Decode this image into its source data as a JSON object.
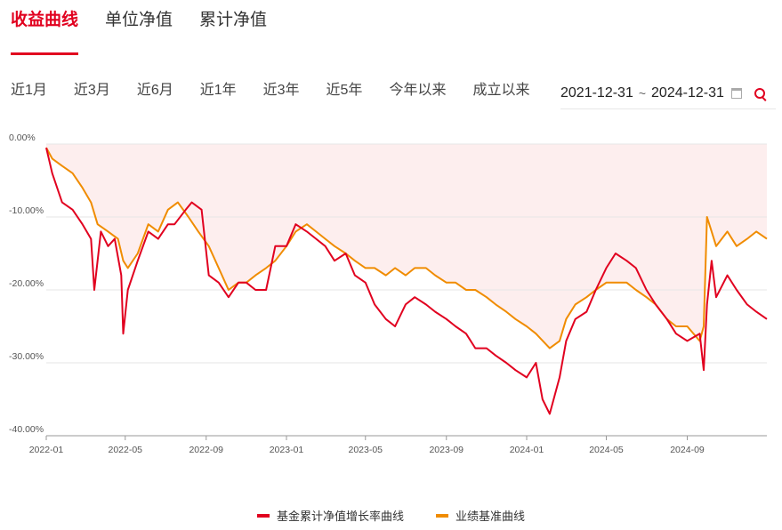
{
  "tabs": [
    {
      "label": "收益曲线"
    },
    {
      "label": "单位净值"
    },
    {
      "label": "累计净值"
    }
  ],
  "ranges": [
    {
      "label": "近1月"
    },
    {
      "label": "近3月"
    },
    {
      "label": "近6月"
    },
    {
      "label": "近1年"
    },
    {
      "label": "近3年"
    },
    {
      "label": "近5年"
    },
    {
      "label": "今年以来"
    },
    {
      "label": "成立以来"
    }
  ],
  "date_range": {
    "start": "2021-12-31",
    "sep": "~",
    "end": "2024-12-31"
  },
  "colors": {
    "accent": "#e1001f",
    "fund": "#e1001f",
    "benchmark": "#f08c00",
    "fill": "#fdeeee",
    "grid": "#e6e6e6"
  },
  "icons": {
    "calendar": "calendar-icon",
    "search": "search-icon"
  },
  "legend": [
    {
      "label": "基金累计净值增长率曲线",
      "color": "#e1001f"
    },
    {
      "label": "业绩基准曲线",
      "color": "#f08c00"
    }
  ],
  "chart_data": {
    "type": "line",
    "y_unit": "%",
    "ylim": [
      -40,
      0
    ],
    "y_ticks": [
      0,
      -10,
      -20,
      -30,
      -40
    ],
    "y_tick_labels": [
      "0.00%",
      "-10.00%",
      "-20.00%",
      "-30.00%",
      "-40.00%"
    ],
    "x_range": [
      "2022-01-01",
      "2024-12-31"
    ],
    "x_tick_labels": [
      "2022-01",
      "2022-05",
      "2022-09",
      "2023-01",
      "2023-05",
      "2023-09",
      "2024-01",
      "2024-05",
      "2024-09"
    ],
    "x_tick_dates": [
      "2022-01-01",
      "2022-05-01",
      "2022-09-01",
      "2023-01-01",
      "2023-05-01",
      "2023-09-01",
      "2024-01-01",
      "2024-05-01",
      "2024-09-01"
    ],
    "grid": true,
    "legend_position": "bottom",
    "series": [
      {
        "name": "基金累计净值增长率曲线",
        "x": [
          "2022-01-01",
          "2022-01-10",
          "2022-01-25",
          "2022-02-10",
          "2022-02-25",
          "2022-03-10",
          "2022-03-15",
          "2022-03-25",
          "2022-04-05",
          "2022-04-15",
          "2022-04-25",
          "2022-04-28",
          "2022-05-05",
          "2022-05-20",
          "2022-06-05",
          "2022-06-20",
          "2022-07-05",
          "2022-07-15",
          "2022-08-01",
          "2022-08-10",
          "2022-08-25",
          "2022-09-05",
          "2022-09-20",
          "2022-10-05",
          "2022-10-20",
          "2022-11-01",
          "2022-11-15",
          "2022-12-01",
          "2022-12-15",
          "2023-01-01",
          "2023-01-15",
          "2023-02-01",
          "2023-02-15",
          "2023-03-01",
          "2023-03-15",
          "2023-04-01",
          "2023-04-15",
          "2023-05-01",
          "2023-05-15",
          "2023-06-01",
          "2023-06-15",
          "2023-07-01",
          "2023-07-15",
          "2023-08-01",
          "2023-08-15",
          "2023-09-01",
          "2023-09-15",
          "2023-10-01",
          "2023-10-15",
          "2023-11-01",
          "2023-11-15",
          "2023-12-01",
          "2023-12-15",
          "2024-01-01",
          "2024-01-15",
          "2024-01-25",
          "2024-02-05",
          "2024-02-20",
          "2024-03-01",
          "2024-03-15",
          "2024-04-01",
          "2024-04-15",
          "2024-05-01",
          "2024-05-15",
          "2024-06-01",
          "2024-06-15",
          "2024-07-01",
          "2024-07-15",
          "2024-08-01",
          "2024-08-15",
          "2024-09-01",
          "2024-09-20",
          "2024-09-26",
          "2024-10-01",
          "2024-10-08",
          "2024-10-15",
          "2024-11-01",
          "2024-11-15",
          "2024-12-01",
          "2024-12-15",
          "2024-12-31"
        ],
        "values": [
          -0.5,
          -4,
          -8,
          -9,
          -11,
          -13,
          -20,
          -12,
          -14,
          -13,
          -18,
          -26,
          -20,
          -16,
          -12,
          -13,
          -11,
          -11,
          -9,
          -8,
          -9,
          -18,
          -19,
          -21,
          -19,
          -19,
          -20,
          -20,
          -14,
          -14,
          -11,
          -12,
          -13,
          -14,
          -16,
          -15,
          -18,
          -19,
          -22,
          -24,
          -25,
          -22,
          -21,
          -22,
          -23,
          -24,
          -25,
          -26,
          -28,
          -28,
          -29,
          -30,
          -31,
          -32,
          -30,
          -35,
          -37,
          -32,
          -27,
          -24,
          -23,
          -20,
          -17,
          -15,
          -16,
          -17,
          -20,
          -22,
          -24,
          -26,
          -27,
          -26,
          -31,
          -22,
          -16,
          -21,
          -18,
          -20,
          -22,
          -23,
          -24
        ]
      },
      {
        "name": "业绩基准曲线",
        "x": [
          "2022-01-01",
          "2022-01-10",
          "2022-01-25",
          "2022-02-10",
          "2022-02-25",
          "2022-03-10",
          "2022-03-20",
          "2022-04-05",
          "2022-04-20",
          "2022-04-28",
          "2022-05-05",
          "2022-05-20",
          "2022-06-05",
          "2022-06-20",
          "2022-07-05",
          "2022-07-20",
          "2022-08-05",
          "2022-08-20",
          "2022-09-05",
          "2022-09-20",
          "2022-10-05",
          "2022-10-20",
          "2022-11-01",
          "2022-11-15",
          "2022-12-01",
          "2022-12-15",
          "2023-01-01",
          "2023-01-15",
          "2023-02-01",
          "2023-02-15",
          "2023-03-01",
          "2023-03-15",
          "2023-04-01",
          "2023-04-15",
          "2023-05-01",
          "2023-05-15",
          "2023-06-01",
          "2023-06-15",
          "2023-07-01",
          "2023-07-15",
          "2023-08-01",
          "2023-08-15",
          "2023-09-01",
          "2023-09-15",
          "2023-10-01",
          "2023-10-15",
          "2023-11-01",
          "2023-11-15",
          "2023-12-01",
          "2023-12-15",
          "2024-01-01",
          "2024-01-15",
          "2024-02-05",
          "2024-02-20",
          "2024-03-01",
          "2024-03-15",
          "2024-04-01",
          "2024-04-15",
          "2024-05-01",
          "2024-05-15",
          "2024-06-01",
          "2024-06-15",
          "2024-07-01",
          "2024-07-15",
          "2024-08-01",
          "2024-08-15",
          "2024-09-01",
          "2024-09-20",
          "2024-09-26",
          "2024-10-01",
          "2024-10-08",
          "2024-10-15",
          "2024-11-01",
          "2024-11-15",
          "2024-12-01",
          "2024-12-15",
          "2024-12-31"
        ],
        "values": [
          -0.5,
          -2,
          -3,
          -4,
          -6,
          -8,
          -11,
          -12,
          -13,
          -16,
          -17,
          -15,
          -11,
          -12,
          -9,
          -8,
          -10,
          -12,
          -14,
          -17,
          -20,
          -19,
          -19,
          -18,
          -17,
          -16,
          -14,
          -12,
          -11,
          -12,
          -13,
          -14,
          -15,
          -16,
          -17,
          -17,
          -18,
          -17,
          -18,
          -17,
          -17,
          -18,
          -19,
          -19,
          -20,
          -20,
          -21,
          -22,
          -23,
          -24,
          -25,
          -26,
          -28,
          -27,
          -24,
          -22,
          -21,
          -20,
          -19,
          -19,
          -19,
          -20,
          -21,
          -22,
          -24,
          -25,
          -25,
          -27,
          -25,
          -10,
          -12,
          -14,
          -12,
          -14,
          -13,
          -12,
          -13
        ]
      }
    ]
  }
}
